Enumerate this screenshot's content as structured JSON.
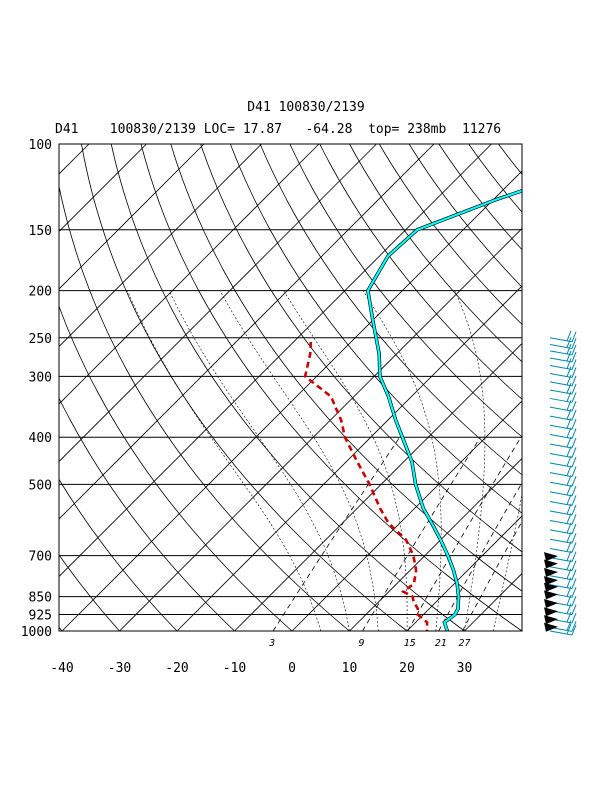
{
  "title": "D41 100830/2139",
  "subtitle": "D41    100830/2139 LOC= 17.87   -64.28  top= 238mb  11276",
  "chart_data": {
    "type": "line",
    "chart_kind": "skew-T log-p sounding",
    "y_scale": "log",
    "pressure_ticks": [
      100,
      150,
      200,
      250,
      300,
      400,
      500,
      700,
      850,
      925,
      1000
    ],
    "temperature_ticks": [
      -40,
      -30,
      -20,
      -10,
      0,
      10,
      20,
      30
    ],
    "mixing_ratio_labels": [
      "3",
      "9",
      "15",
      "21",
      "27"
    ],
    "mixing_ratios": [
      3,
      9,
      15,
      21,
      27
    ],
    "colors": {
      "temperature": "#00ffff",
      "dewpoint": "#cc0000",
      "wind": "#0088aa",
      "grid": "#000000"
    },
    "series": [
      {
        "role": "temperature",
        "points": [
          [
            100,
            -15.2
          ],
          [
            110,
            -27.5
          ],
          [
            130,
            -39.5
          ],
          [
            150,
            -48.0
          ],
          [
            170,
            -48.5
          ],
          [
            200,
            -46.0
          ],
          [
            230,
            -40.0
          ],
          [
            270,
            -33.0
          ],
          [
            300,
            -29.0
          ],
          [
            330,
            -24.0
          ],
          [
            370,
            -18.5
          ],
          [
            400,
            -14.5
          ],
          [
            450,
            -8.5
          ],
          [
            500,
            -4.0
          ],
          [
            560,
            1.5
          ],
          [
            600,
            5.5
          ],
          [
            650,
            10.0
          ],
          [
            700,
            14.0
          ],
          [
            750,
            17.5
          ],
          [
            800,
            20.5
          ],
          [
            850,
            23.0
          ],
          [
            900,
            25.0
          ],
          [
            925,
            25.5
          ],
          [
            960,
            25.0
          ],
          [
            1000,
            27.0
          ]
        ]
      },
      {
        "role": "dewpoint",
        "points": [
          [
            255,
            -47.0
          ],
          [
            270,
            -45.0
          ],
          [
            300,
            -42.0
          ],
          [
            330,
            -34.0
          ],
          [
            370,
            -28.0
          ],
          [
            400,
            -24.5
          ],
          [
            450,
            -18.0
          ],
          [
            500,
            -12.0
          ],
          [
            560,
            -6.0
          ],
          [
            600,
            -2.0
          ],
          [
            650,
            4.0
          ],
          [
            700,
            8.0
          ],
          [
            750,
            11.0
          ],
          [
            800,
            13.0
          ],
          [
            830,
            12.5
          ],
          [
            850,
            15.0
          ],
          [
            870,
            16.0
          ],
          [
            900,
            18.0
          ],
          [
            925,
            19.0
          ],
          [
            960,
            22.0
          ],
          [
            1000,
            23.5
          ]
        ]
      }
    ],
    "wind_profile": {
      "pressures": [
        250,
        258,
        266,
        275,
        285,
        296,
        308,
        320,
        333,
        347,
        362,
        378,
        395,
        413,
        432,
        452,
        473,
        495,
        518,
        542,
        567,
        593,
        620,
        648,
        677,
        707,
        738,
        770,
        803,
        837,
        872,
        908,
        945,
        983,
        1000
      ],
      "flag_pressures": [
        705,
        730,
        760,
        790,
        815,
        845,
        880,
        915,
        950,
        985
      ]
    }
  }
}
